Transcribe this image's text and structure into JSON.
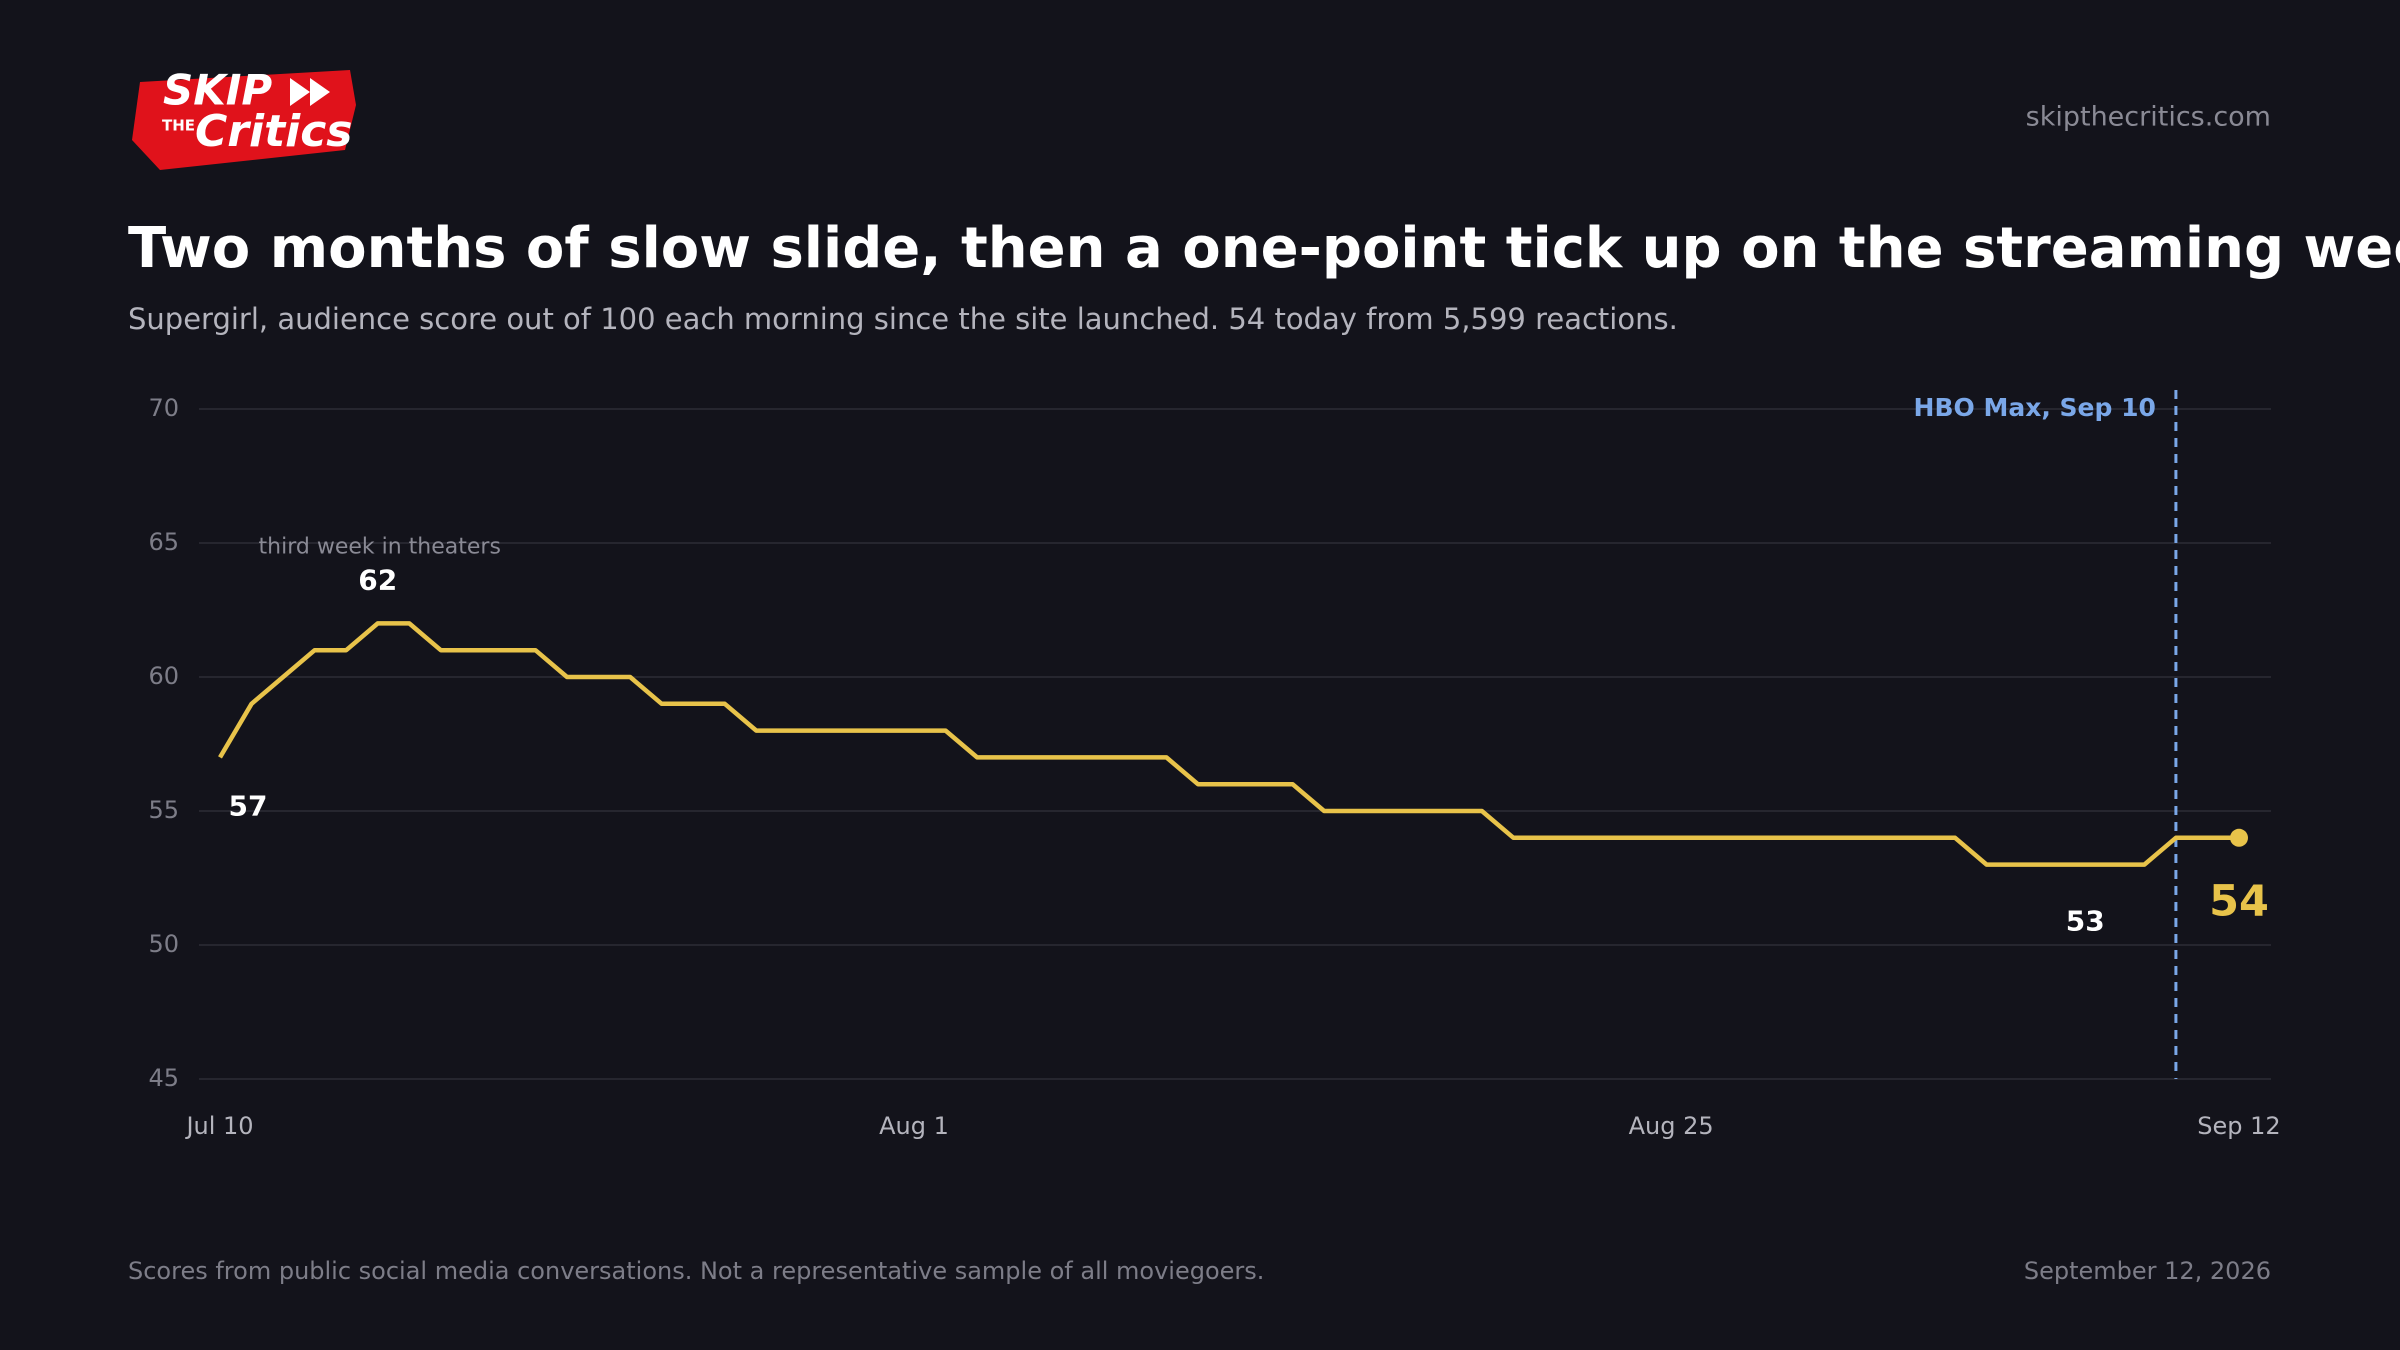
{
  "logo": {
    "skip": "SKIP",
    "the": "THE",
    "critics": "Critics"
  },
  "site": "skipthecritics.com",
  "chart_data": {
    "type": "line",
    "title": "Two months of slow slide, then a one-point tick up on the streaming weekend",
    "subtitle": "Supergirl, audience score out of 100 each morning since the site launched. 54 today from 5,599 reactions.",
    "categories": [
      "Jul 10",
      null,
      null,
      null,
      null,
      null,
      null,
      null,
      null,
      null,
      null,
      null,
      null,
      null,
      null,
      null,
      null,
      null,
      null,
      null,
      null,
      null,
      "Aug 1",
      null,
      null,
      null,
      null,
      null,
      null,
      null,
      null,
      null,
      null,
      null,
      null,
      null,
      null,
      null,
      null,
      null,
      null,
      null,
      null,
      null,
      null,
      null,
      "Aug 25",
      null,
      null,
      null,
      null,
      null,
      null,
      null,
      null,
      null,
      null,
      null,
      null,
      null,
      null,
      null,
      null,
      null,
      "Sep 12"
    ],
    "series": [
      {
        "name": "Audience score",
        "color": "#e8c34a",
        "values": [
          57,
          59,
          60,
          61,
          61,
          62,
          62,
          61,
          61,
          61,
          61,
          60,
          60,
          60,
          59,
          59,
          59,
          58,
          58,
          58,
          58,
          58,
          58,
          58,
          57,
          57,
          57,
          57,
          57,
          57,
          57,
          56,
          56,
          56,
          56,
          55,
          55,
          55,
          55,
          55,
          55,
          54,
          54,
          54,
          54,
          54,
          54,
          54,
          54,
          54,
          54,
          54,
          54,
          54,
          54,
          54,
          53,
          53,
          53,
          53,
          53,
          53,
          54,
          54,
          54
        ]
      }
    ],
    "ylim": [
      45,
      70
    ],
    "yticks": [
      45,
      50,
      55,
      60,
      65,
      70
    ],
    "grid": true,
    "peak_annotation": "third week in theaters",
    "event_label": "HBO Max, Sep 10",
    "event_color": "#7aa7e8"
  },
  "footer": {
    "note": "Scores from public social media conversations. Not a representative sample of all moviegoers.",
    "date": "September 12, 2026"
  }
}
